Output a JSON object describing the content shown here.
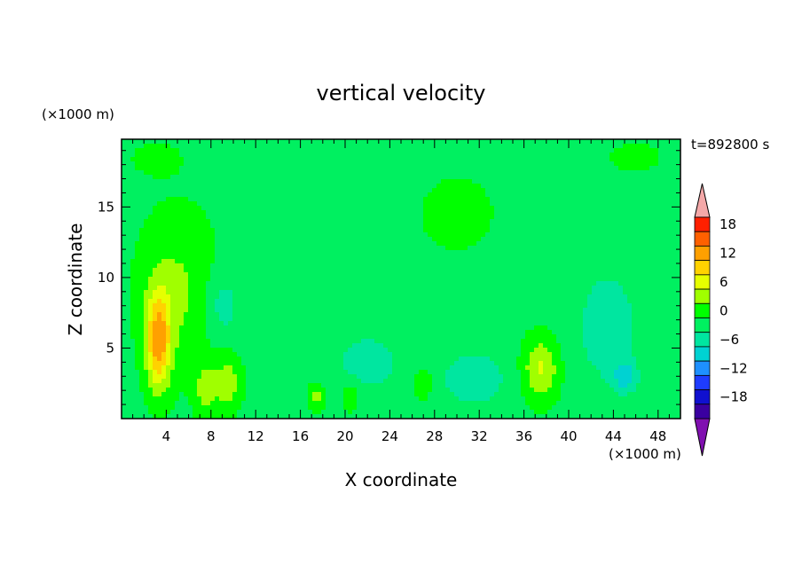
{
  "chart_data": {
    "type": "heatmap",
    "title": "vertical velocity",
    "xlabel": "X coordinate",
    "ylabel": "Z coordinate",
    "x_unit": "(×1000 m)",
    "y_unit": "(×1000 m)",
    "time_label": "t=892800 s",
    "xlim": [
      0,
      50
    ],
    "ylim": [
      0,
      19.8
    ],
    "x_ticks": [
      4,
      8,
      12,
      16,
      20,
      24,
      28,
      32,
      36,
      40,
      44,
      48
    ],
    "y_ticks": [
      5,
      10,
      15
    ],
    "grid": false,
    "colorbar": {
      "levels": [
        -21,
        -18,
        -15,
        -12,
        -9,
        -6,
        -3,
        0,
        3,
        6,
        9,
        12,
        15,
        18,
        21
      ],
      "tick_labels": [
        "18",
        "12",
        "6",
        "0",
        "−6",
        "−12",
        "−18"
      ],
      "tick_values": [
        18,
        12,
        6,
        0,
        -6,
        -12,
        -18
      ],
      "colors_low_to_high": [
        "#8010b0",
        "#3a00a0",
        "#1010d0",
        "#1e3cff",
        "#1e90ff",
        "#00d2d2",
        "#00e6a0",
        "#00f060",
        "#00ff00",
        "#a0ff00",
        "#e6ff00",
        "#ffd200",
        "#ffa000",
        "#ff6000",
        "#ff2000",
        "#f4a8a8"
      ],
      "over_color": "#f4a8a8",
      "under_color": "#8010b0"
    },
    "features": [
      {
        "x": 3.3,
        "z": 5.5,
        "sx": 1.1,
        "sz": 3.4,
        "value": 13.5
      },
      {
        "x": 5.0,
        "z": 9.0,
        "sx": 3.5,
        "sz": 5.5,
        "value": 4.5
      },
      {
        "x": 7.5,
        "z": 2.0,
        "sx": 1.0,
        "sz": 2.0,
        "value": 5.0
      },
      {
        "x": 9.5,
        "z": 2.5,
        "sx": 1.2,
        "sz": 2.0,
        "value": 5.5
      },
      {
        "x": 9.0,
        "z": 8.0,
        "sx": 1.6,
        "sz": 2.5,
        "value": -4.0
      },
      {
        "x": 37.5,
        "z": 3.5,
        "sx": 1.6,
        "sz": 2.2,
        "value": 7.5
      },
      {
        "x": 31.5,
        "z": 2.8,
        "sx": 3.0,
        "sz": 2.0,
        "value": -4.0
      },
      {
        "x": 43.5,
        "z": 6.5,
        "sx": 3.0,
        "sz": 4.5,
        "value": -3.5
      },
      {
        "x": 45.0,
        "z": 3.0,
        "sx": 1.0,
        "sz": 1.0,
        "value": -6.5
      },
      {
        "x": 22.0,
        "z": 4.0,
        "sx": 3.5,
        "sz": 2.5,
        "value": -3.0
      },
      {
        "x": 30.0,
        "z": 14.5,
        "sx": 5.0,
        "sz": 4.0,
        "value": 1.5
      },
      {
        "x": 46.0,
        "z": 18.5,
        "sx": 3.5,
        "sz": 1.5,
        "value": 1.5
      },
      {
        "x": 3.0,
        "z": 18.5,
        "sx": 3.0,
        "sz": 1.5,
        "value": 1.5
      },
      {
        "x": 17.5,
        "z": 1.5,
        "sx": 0.8,
        "sz": 1.0,
        "value": 5.0
      },
      {
        "x": 20.5,
        "z": 1.5,
        "sx": 0.8,
        "sz": 1.0,
        "value": 4.5
      },
      {
        "x": 27.0,
        "z": 2.5,
        "sx": 1.0,
        "sz": 1.5,
        "value": 3.0
      }
    ],
    "background_value": -1.0
  }
}
